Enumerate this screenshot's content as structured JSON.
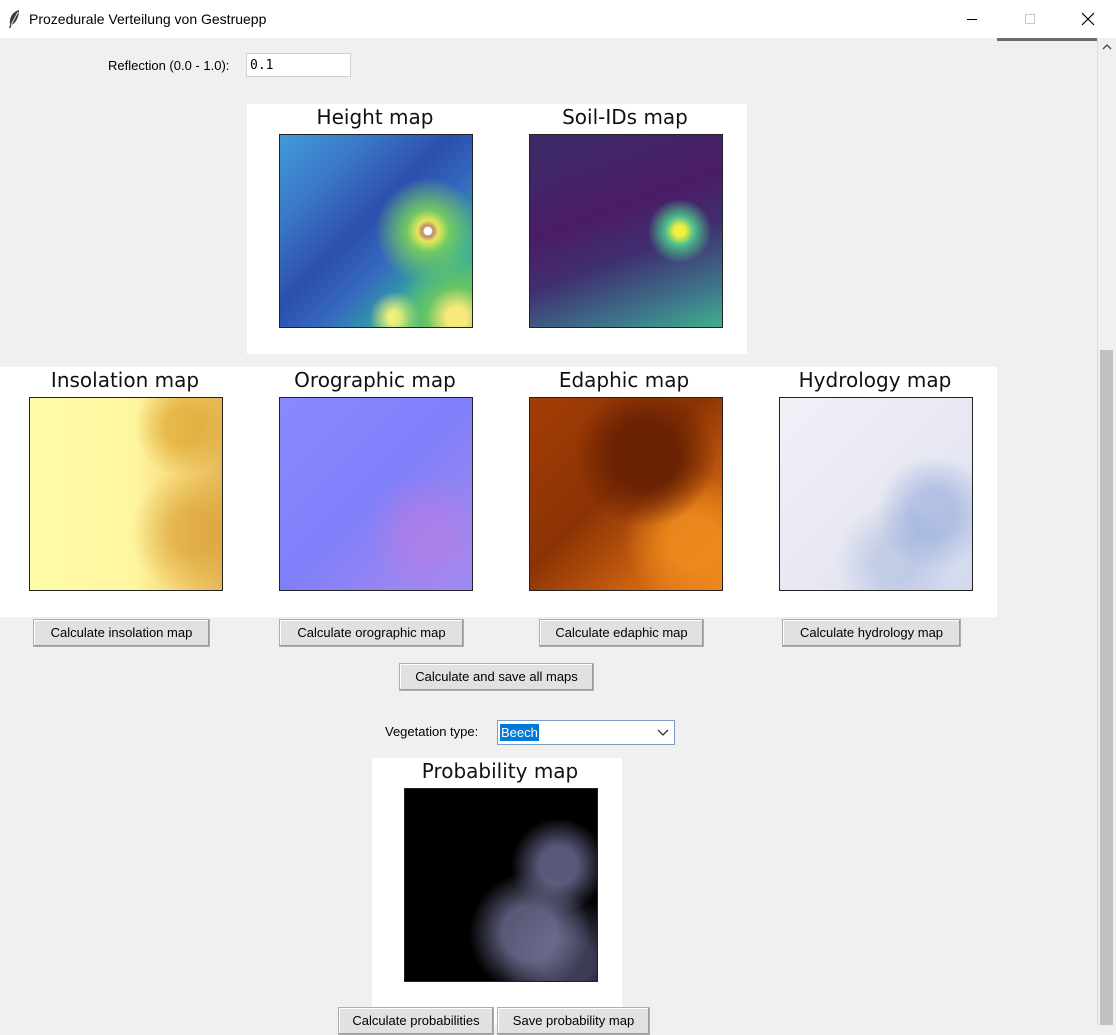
{
  "window": {
    "title": "Prozedurale Verteilung von Gestruepp",
    "icon": "feather-icon"
  },
  "reflection": {
    "label": "Reflection (0.0 - 1.0):",
    "value": "0.1"
  },
  "maps": {
    "height": "Height map",
    "soil": "Soil-IDs map",
    "insolation": "Insolation map",
    "orographic": "Orographic map",
    "edaphic": "Edaphic map",
    "hydrology": "Hydrology map",
    "probability": "Probability map"
  },
  "buttons": {
    "calc_insolation": "Calculate insolation map",
    "calc_orographic": "Calculate orographic map",
    "calc_edaphic": "Calculate edaphic map",
    "calc_hydrology": "Calculate hydrology map",
    "calc_all": "Calculate and save all maps",
    "calc_prob": "Calculate probabilities",
    "save_prob": "Save probability map"
  },
  "vegetation": {
    "label": "Vegetation type:",
    "selected": "Beech"
  }
}
